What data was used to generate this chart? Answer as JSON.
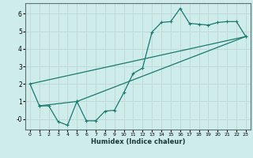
{
  "xlabel": "Humidex (Indice chaleur)",
  "background_color": "#ceecea",
  "grid_color": "#c0d8d8",
  "line_color": "#1a7a6e",
  "xlim": [
    -0.5,
    23.5
  ],
  "ylim": [
    -0.6,
    6.6
  ],
  "xticks": [
    0,
    1,
    2,
    3,
    4,
    5,
    6,
    7,
    8,
    9,
    10,
    11,
    12,
    13,
    14,
    15,
    16,
    17,
    18,
    19,
    20,
    21,
    22,
    23
  ],
  "yticks": [
    0,
    1,
    2,
    3,
    4,
    5,
    6
  ],
  "main_line": [
    [
      0,
      2.0
    ],
    [
      1,
      0.75
    ],
    [
      2,
      0.75
    ],
    [
      3,
      -0.15
    ],
    [
      4,
      -0.35
    ],
    [
      5,
      1.0
    ],
    [
      6,
      -0.1
    ],
    [
      7,
      -0.1
    ],
    [
      8,
      0.45
    ],
    [
      9,
      0.5
    ],
    [
      10,
      1.5
    ],
    [
      11,
      2.6
    ],
    [
      12,
      2.9
    ],
    [
      13,
      4.95
    ],
    [
      14,
      5.5
    ],
    [
      15,
      5.55
    ],
    [
      16,
      6.3
    ],
    [
      17,
      5.45
    ],
    [
      18,
      5.4
    ],
    [
      19,
      5.35
    ],
    [
      20,
      5.5
    ],
    [
      21,
      5.55
    ],
    [
      22,
      5.55
    ],
    [
      23,
      4.7
    ]
  ],
  "line2": [
    [
      1,
      0.75
    ],
    [
      5,
      1.0
    ],
    [
      23,
      4.7
    ]
  ],
  "line3": [
    [
      0,
      2.0
    ],
    [
      23,
      4.7
    ]
  ]
}
